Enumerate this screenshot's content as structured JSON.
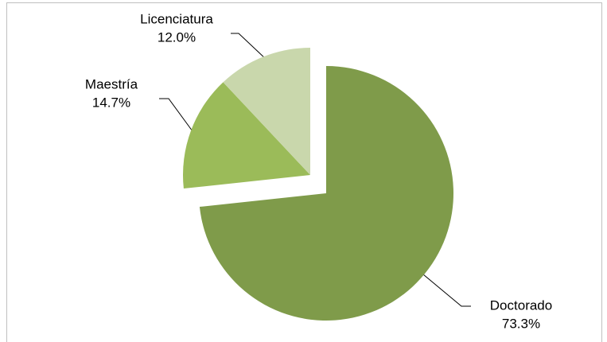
{
  "chart_data": {
    "type": "pie",
    "categories": [
      "Doctorado",
      "Maestría",
      "Licenciatura"
    ],
    "values": [
      73.3,
      14.7,
      12.0
    ],
    "value_labels": [
      "73.3%",
      "14.7%",
      "12.0%"
    ],
    "colors": [
      "#7f9b4a",
      "#9bbb59",
      "#c9d7ac"
    ]
  }
}
